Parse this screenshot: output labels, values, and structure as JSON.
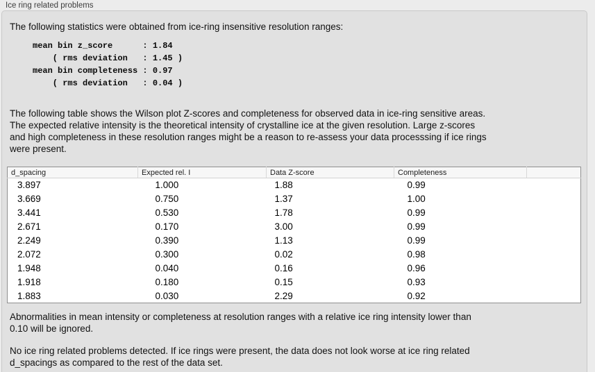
{
  "panel": {
    "title": "Ice ring related problems"
  },
  "intro_paragraph": "The following statistics were obtained from ice-ring insensitive resolution ranges:",
  "stats_block": {
    "lines": [
      "mean bin z_score      : 1.84",
      "    ( rms deviation   : 1.45 )",
      "mean bin completeness : 0.97",
      "    ( rms deviation   : 0.04 )"
    ],
    "mean_bin_z_score": "1.84",
    "z_score_rms_deviation": "1.45",
    "mean_bin_completeness": "0.97",
    "completeness_rms_deviation": "0.04"
  },
  "table_intro_paragraph": {
    "lines": [
      "The following table shows the Wilson plot Z-scores and completeness for observed data in ice-ring sensitive areas.",
      "The expected relative intensity is the theoretical intensity of crystalline ice at the given resolution. Large z-scores",
      "and high completeness in these resolution ranges might be a reason to re-assess your data processsing if ice rings",
      "were present."
    ]
  },
  "table": {
    "columns": [
      "d_spacing",
      "Expected rel. I",
      "Data Z-score",
      "Completeness"
    ],
    "rows": [
      [
        "3.897",
        "1.000",
        "1.88",
        "0.99"
      ],
      [
        "3.669",
        "0.750",
        "1.37",
        "1.00"
      ],
      [
        "3.441",
        "0.530",
        "1.78",
        "0.99"
      ],
      [
        "2.671",
        "0.170",
        "3.00",
        "0.99"
      ],
      [
        "2.249",
        "0.390",
        "1.13",
        "0.99"
      ],
      [
        "2.072",
        "0.300",
        "0.02",
        "0.98"
      ],
      [
        "1.948",
        "0.040",
        "0.16",
        "0.96"
      ],
      [
        "1.918",
        "0.180",
        "0.15",
        "0.93"
      ],
      [
        "1.883",
        "0.030",
        "2.29",
        "0.92"
      ]
    ]
  },
  "ignore_note_paragraph": {
    "lines": [
      "Abnormalities in mean intensity or completeness at resolution ranges with a relative ice ring intensity lower than",
      "0.10 will be ignored."
    ]
  },
  "conclusion_paragraph": {
    "lines": [
      "No ice ring related problems detected. If ice rings were present, the data does not look worse at ice ring related",
      "d_spacings as compared to the rest of the data set."
    ]
  },
  "colors": {
    "outer_background": "#ececec",
    "panel_background": "#e1e1e1",
    "panel_border": "#c8c8c8",
    "table_border": "#8f8f8f",
    "table_header_background": "#f7f7f7"
  }
}
